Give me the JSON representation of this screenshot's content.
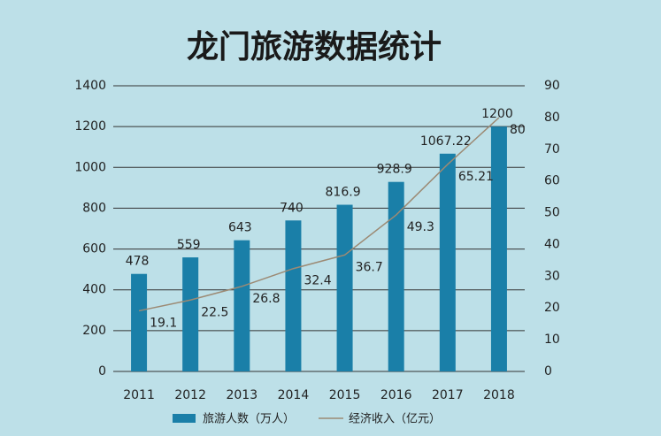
{
  "chart_data": {
    "type": "bar",
    "title": "龙门旅游数据统计",
    "categories": [
      "2011",
      "2012",
      "2013",
      "2014",
      "2015",
      "2016",
      "2017",
      "2018"
    ],
    "series": [
      {
        "name": "旅游人数（万人）",
        "type": "bar",
        "color": "#1a7fa8",
        "values": [
          478,
          559,
          643,
          740,
          816.9,
          928.9,
          1067.22,
          1200
        ]
      },
      {
        "name": "经济收入（亿元）",
        "type": "line",
        "axis": "y2",
        "color": "#9c8a74",
        "values": [
          19.1,
          22.5,
          26.8,
          32.4,
          36.7,
          49.3,
          65.21,
          80
        ]
      }
    ],
    "ylim": [
      0,
      1400
    ],
    "yticks": [
      0,
      200,
      400,
      600,
      800,
      1000,
      1200,
      1400
    ],
    "y2lim": [
      0,
      90
    ],
    "y2ticks": [
      0,
      10,
      20,
      30,
      40,
      50,
      60,
      70,
      80,
      90
    ],
    "grid": true
  }
}
